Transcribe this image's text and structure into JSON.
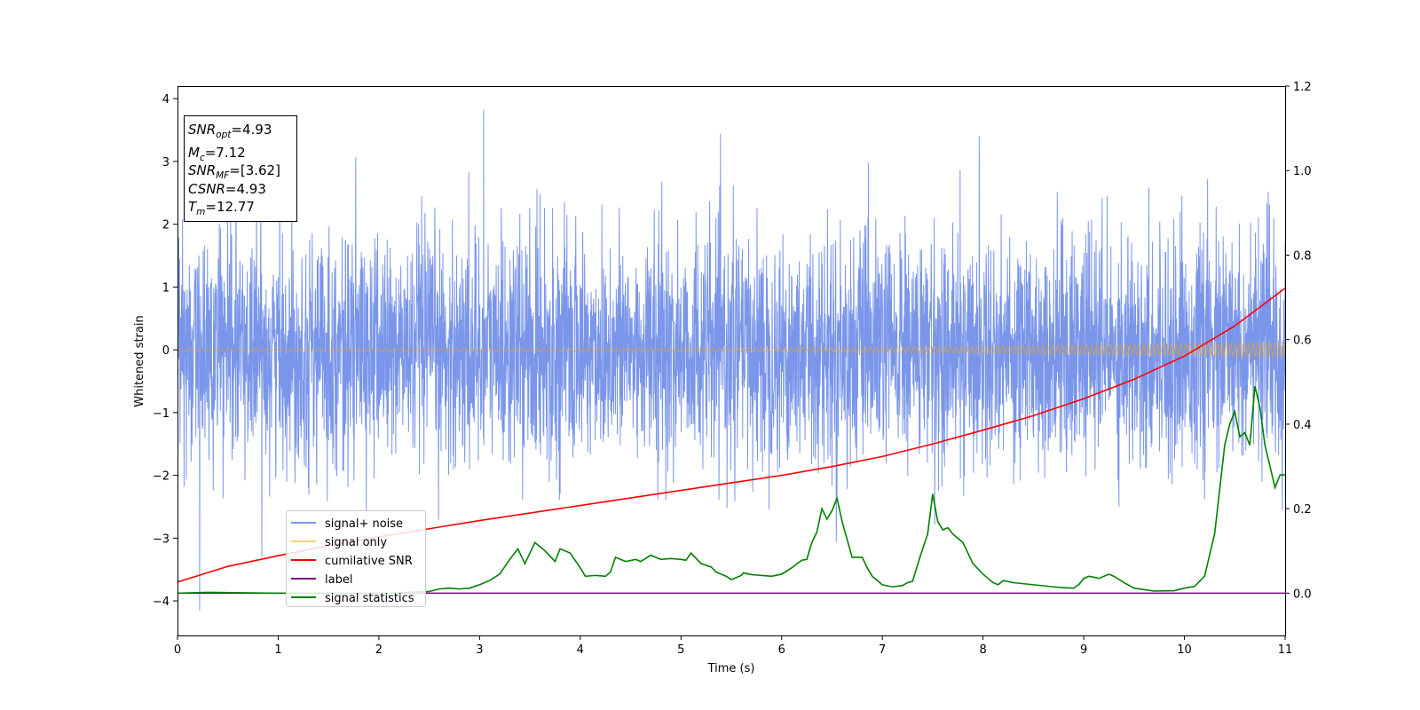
{
  "chart_data": {
    "type": "line",
    "xlabel": "Time (s)",
    "ylabel": "Whitened strain",
    "xlim": [
      0,
      11
    ],
    "ylim": [
      -4.55,
      4.2
    ],
    "y2lim": [
      -0.1,
      1.2
    ],
    "x_ticks": [
      "0",
      "1",
      "2",
      "3",
      "4",
      "5",
      "6",
      "7",
      "8",
      "9",
      "10",
      "11"
    ],
    "y_ticks": [
      "4",
      "3",
      "2",
      "1",
      "0",
      "−1",
      "−2",
      "−3",
      "−4"
    ],
    "y_tick_values": [
      4,
      3,
      2,
      1,
      0,
      -1,
      -2,
      -3,
      -4
    ],
    "y2_ticks": [
      "0.0",
      "0.2",
      "0.4",
      "0.6",
      "0.8",
      "1.0",
      "1.2"
    ],
    "y2_tick_values": [
      0.0,
      0.2,
      0.4,
      0.6,
      0.8,
      1.0,
      1.2
    ],
    "grid": false,
    "legend_position": "bottom-left",
    "annotation": [
      {
        "base": "SNR",
        "sub": "opt",
        "value": "=4.93"
      },
      {
        "base": "M",
        "sub": "c",
        "value": "=7.12"
      },
      {
        "base": "SNR",
        "sub": "MF",
        "value": "=[3.62]"
      },
      {
        "base": "CSNR",
        "sub": "",
        "value": "=4.93"
      },
      {
        "base": "T",
        "sub": "m",
        "value": "=12.77"
      }
    ],
    "series": [
      {
        "name": "signal+ noise",
        "color": "#4169e1",
        "axis": "left",
        "kind": "noise",
        "std": 0.9,
        "peak_max": 3.82,
        "peak_at": 3.04,
        "peak_min": -4.15,
        "trough_at": 0.22
      },
      {
        "name": "signal only",
        "color": "#ffa500",
        "axis": "left",
        "kind": "chirp",
        "amp_start": 0.02,
        "amp_end": 0.12
      },
      {
        "name": "cumilative SNR",
        "color": "#ff0000",
        "axis": "left",
        "x": [
          0,
          0.5,
          1,
          1.5,
          2,
          2.5,
          3,
          3.5,
          4,
          4.5,
          5,
          5.5,
          6,
          6.5,
          7,
          7.5,
          8,
          8.5,
          9,
          9.5,
          10,
          10.5,
          11
        ],
        "y": [
          -3.7,
          -3.45,
          -3.28,
          -3.12,
          -2.98,
          -2.85,
          -2.72,
          -2.6,
          -2.48,
          -2.36,
          -2.24,
          -2.12,
          -2.0,
          -1.86,
          -1.7,
          -1.5,
          -1.28,
          -1.05,
          -0.78,
          -0.47,
          -0.1,
          0.38,
          0.98
        ]
      },
      {
        "name": "label",
        "color": "#800080",
        "axis": "right",
        "x": [
          0,
          11
        ],
        "y": [
          0.0,
          0.0
        ]
      },
      {
        "name": "signal statistics",
        "color": "#008000",
        "axis": "right",
        "x": [
          0,
          0.3,
          1.0,
          2.0,
          2.5,
          2.6,
          2.7,
          2.8,
          2.9,
          3.0,
          3.1,
          3.2,
          3.3,
          3.38,
          3.45,
          3.55,
          3.65,
          3.75,
          3.8,
          3.9,
          4.0,
          4.05,
          4.15,
          4.25,
          4.3,
          4.35,
          4.45,
          4.55,
          4.6,
          4.7,
          4.8,
          4.9,
          5.0,
          5.05,
          5.1,
          5.2,
          5.3,
          5.35,
          5.45,
          5.5,
          5.6,
          5.62,
          5.7,
          5.8,
          5.9,
          6.0,
          6.1,
          6.2,
          6.25,
          6.3,
          6.35,
          6.4,
          6.45,
          6.5,
          6.55,
          6.6,
          6.7,
          6.8,
          6.85,
          6.9,
          7.0,
          7.1,
          7.2,
          7.25,
          7.3,
          7.38,
          7.45,
          7.5,
          7.55,
          7.6,
          7.65,
          7.7,
          7.8,
          7.9,
          8.0,
          8.1,
          8.15,
          8.2,
          8.3,
          8.5,
          8.7,
          8.8,
          8.9,
          8.95,
          9.0,
          9.05,
          9.1,
          9.15,
          9.25,
          9.3,
          9.4,
          9.5,
          9.7,
          9.9,
          10.0,
          10.1,
          10.2,
          10.3,
          10.4,
          10.45,
          10.5,
          10.55,
          10.6,
          10.65,
          10.7,
          10.75,
          10.8,
          10.85,
          10.9,
          10.95,
          11.0
        ],
        "y": [
          0.0,
          0.002,
          0.0,
          -0.001,
          0.004,
          0.01,
          0.012,
          0.01,
          0.012,
          0.02,
          0.03,
          0.045,
          0.08,
          0.105,
          0.07,
          0.12,
          0.1,
          0.075,
          0.105,
          0.095,
          0.06,
          0.04,
          0.042,
          0.04,
          0.05,
          0.085,
          0.075,
          0.08,
          0.075,
          0.09,
          0.08,
          0.082,
          0.08,
          0.078,
          0.095,
          0.07,
          0.062,
          0.05,
          0.04,
          0.032,
          0.042,
          0.048,
          0.044,
          0.042,
          0.04,
          0.045,
          0.06,
          0.078,
          0.08,
          0.12,
          0.145,
          0.2,
          0.175,
          0.195,
          0.225,
          0.17,
          0.085,
          0.085,
          0.06,
          0.04,
          0.02,
          0.015,
          0.018,
          0.025,
          0.028,
          0.09,
          0.14,
          0.235,
          0.17,
          0.15,
          0.155,
          0.14,
          0.12,
          0.07,
          0.045,
          0.025,
          0.02,
          0.03,
          0.025,
          0.02,
          0.015,
          0.013,
          0.012,
          0.02,
          0.035,
          0.04,
          0.038,
          0.035,
          0.045,
          0.04,
          0.025,
          0.012,
          0.005,
          0.006,
          0.012,
          0.016,
          0.04,
          0.14,
          0.35,
          0.4,
          0.43,
          0.37,
          0.38,
          0.35,
          0.49,
          0.44,
          0.35,
          0.3,
          0.25,
          0.28,
          0.28
        ]
      }
    ]
  }
}
